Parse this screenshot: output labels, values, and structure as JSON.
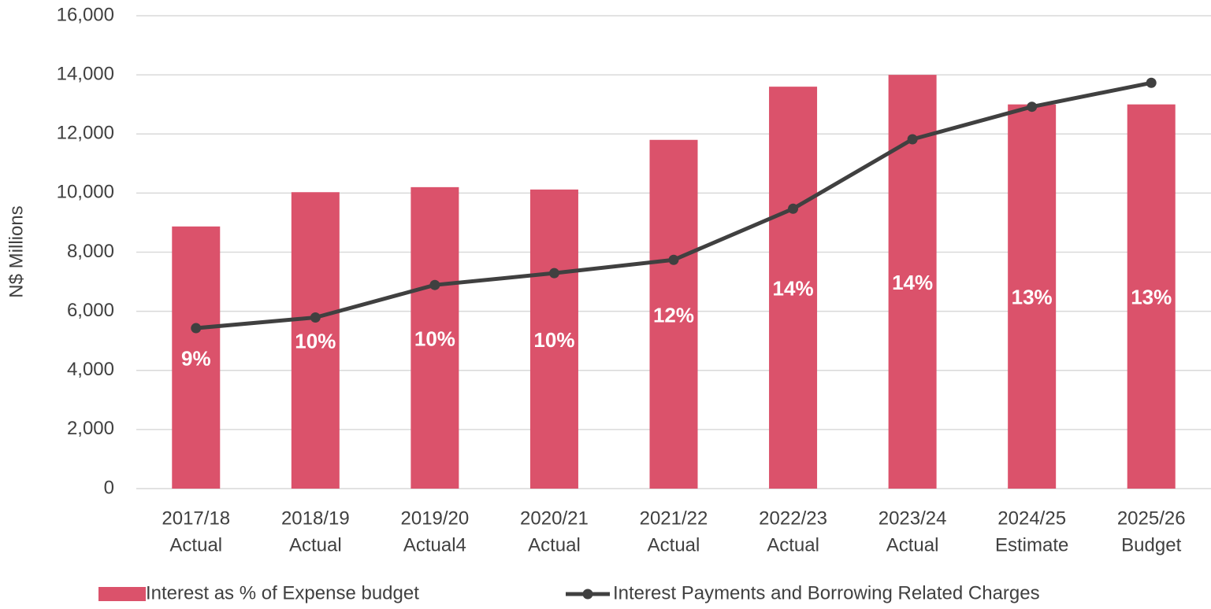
{
  "chart_data": {
    "type": "bar-line",
    "y_axis_label": "N$ Millions",
    "categories": [
      [
        "2017/18",
        "Actual"
      ],
      [
        "2018/19",
        "Actual"
      ],
      [
        "2019/20",
        "Actual4"
      ],
      [
        "2020/21",
        "Actual"
      ],
      [
        "2021/22",
        "Actual"
      ],
      [
        "2022/23",
        "Actual"
      ],
      [
        "2023/24",
        "Actual"
      ],
      [
        "2024/25",
        "Estimate"
      ],
      [
        "2025/26",
        "Budget"
      ]
    ],
    "ylim": [
      0,
      16000
    ],
    "yticks": [
      {
        "value": 0,
        "label": "0"
      },
      {
        "value": 2000,
        "label": "2,000"
      },
      {
        "value": 4000,
        "label": "4,000"
      },
      {
        "value": 6000,
        "label": "6,000"
      },
      {
        "value": 8000,
        "label": "8,000"
      },
      {
        "value": 10000,
        "label": "10,000"
      },
      {
        "value": 12000,
        "label": "12,000"
      },
      {
        "value": 14000,
        "label": "14,000"
      },
      {
        "value": 16000,
        "label": "16,000"
      }
    ],
    "y2lim": [
      0,
      16
    ],
    "grid": true,
    "legend": "bottom",
    "series": [
      {
        "name": "Interest as % of Expense budget",
        "type": "bar",
        "axis": "y2",
        "color": "#db526b",
        "values": [
          8.87,
          10.03,
          10.2,
          10.12,
          11.8,
          13.6,
          14,
          13,
          13
        ],
        "value_labels": [
          "9%",
          "10%",
          "10%",
          "10%",
          "12%",
          "14%",
          "14%",
          "13%",
          "13%"
        ]
      },
      {
        "name": "Interest Payments and Borrowing Related Charges",
        "type": "line",
        "color": "#404040",
        "values": [
          5430,
          5790,
          6890,
          7290,
          7740,
          9470,
          11820,
          12920,
          13730
        ]
      }
    ]
  }
}
